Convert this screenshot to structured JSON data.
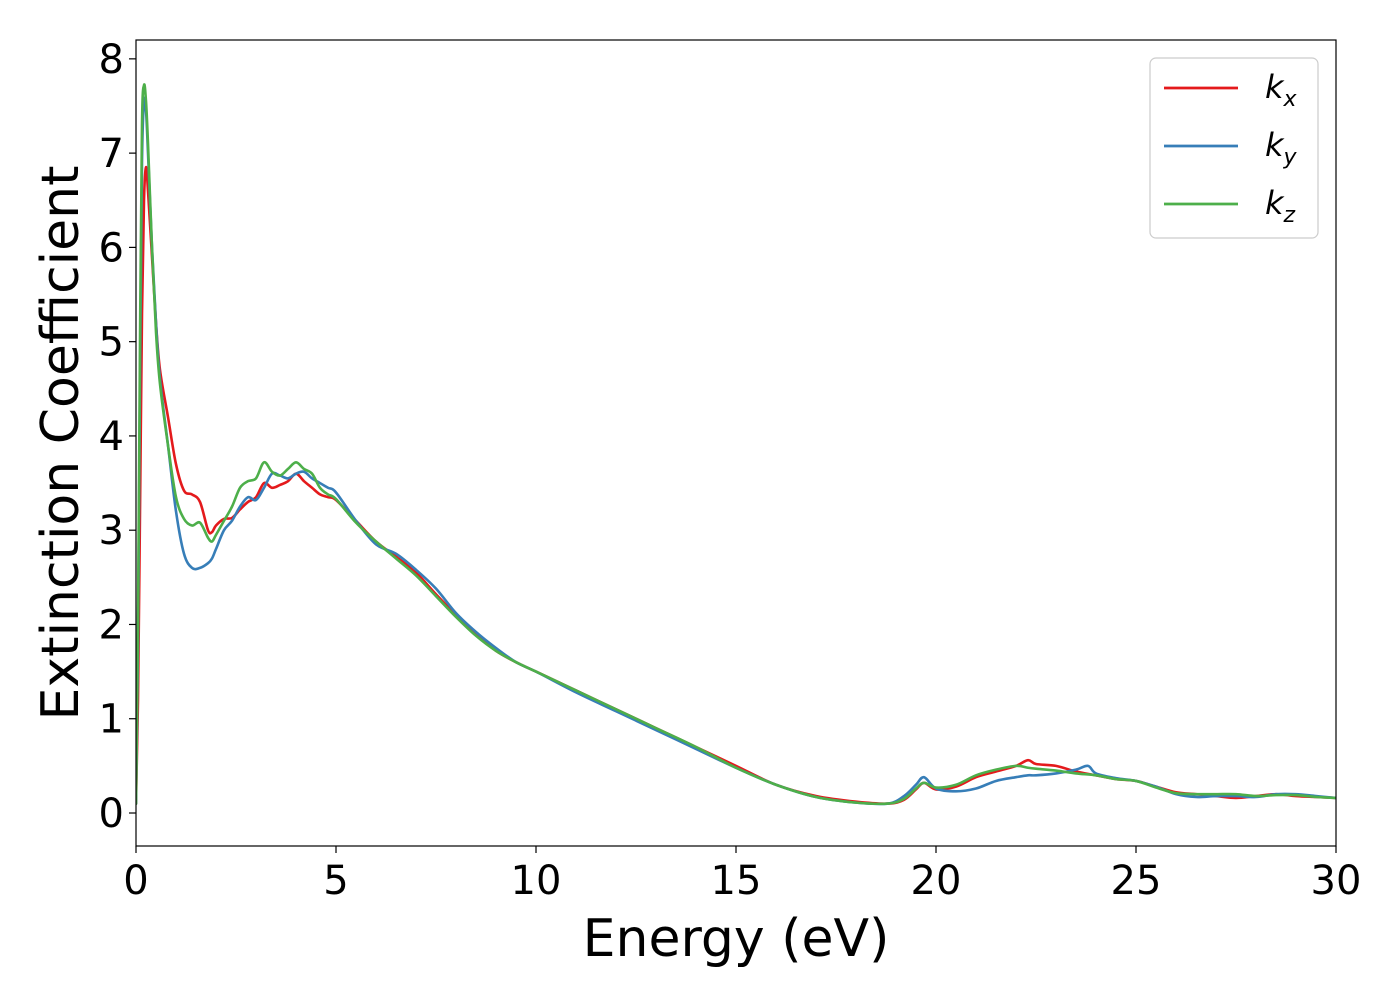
{
  "chart_data": {
    "type": "line",
    "xlabel": "Energy (eV)",
    "ylabel": "Extinction Coefficient",
    "xlim": [
      0,
      30
    ],
    "ylim": [
      -0.35,
      8.2
    ],
    "xticks": [
      0,
      5,
      10,
      15,
      20,
      25,
      30
    ],
    "xtick_labels": [
      "0",
      "5",
      "10",
      "15",
      "20",
      "25",
      "30"
    ],
    "yticks": [
      0,
      1,
      2,
      3,
      4,
      5,
      6,
      7,
      8
    ],
    "ytick_labels": [
      "0",
      "1",
      "2",
      "3",
      "4",
      "5",
      "6",
      "7",
      "8"
    ],
    "grid": false,
    "legend_position": "top-right",
    "series": [
      {
        "name": "k",
        "subscript": "x",
        "color": "#e41a1c",
        "x": [
          0,
          0.05,
          0.1,
          0.15,
          0.2,
          0.25,
          0.3,
          0.4,
          0.5,
          0.6,
          0.8,
          1.0,
          1.2,
          1.4,
          1.6,
          1.8,
          1.9,
          2.0,
          2.2,
          2.4,
          2.6,
          2.8,
          3.0,
          3.2,
          3.4,
          3.6,
          3.8,
          4.0,
          4.2,
          4.4,
          4.6,
          4.8,
          5.0,
          5.5,
          6.0,
          6.5,
          7.0,
          7.5,
          8.0,
          8.5,
          9.0,
          9.5,
          10,
          11,
          12,
          13,
          14,
          15,
          16,
          17,
          18,
          18.8,
          19.2,
          19.5,
          19.7,
          20.0,
          20.5,
          21.0,
          21.5,
          22.0,
          22.3,
          22.5,
          23.0,
          23.5,
          24.0,
          24.5,
          25.0,
          25.5,
          26.0,
          26.5,
          27.0,
          27.5,
          28.0,
          28.5,
          29.0,
          29.5,
          30.0
        ],
        "y": [
          0.1,
          1.2,
          3.2,
          5.3,
          6.5,
          6.85,
          6.6,
          5.9,
          5.2,
          4.7,
          4.2,
          3.7,
          3.42,
          3.38,
          3.3,
          3.0,
          2.98,
          3.05,
          3.12,
          3.13,
          3.22,
          3.3,
          3.35,
          3.5,
          3.45,
          3.48,
          3.52,
          3.6,
          3.52,
          3.45,
          3.38,
          3.35,
          3.32,
          3.1,
          2.88,
          2.72,
          2.55,
          2.32,
          2.1,
          1.9,
          1.72,
          1.6,
          1.5,
          1.3,
          1.1,
          0.9,
          0.7,
          0.5,
          0.3,
          0.18,
          0.12,
          0.1,
          0.14,
          0.25,
          0.32,
          0.25,
          0.28,
          0.38,
          0.44,
          0.5,
          0.56,
          0.52,
          0.5,
          0.44,
          0.4,
          0.36,
          0.34,
          0.28,
          0.22,
          0.2,
          0.18,
          0.16,
          0.18,
          0.2,
          0.18,
          0.17,
          0.16
        ]
      },
      {
        "name": "k",
        "subscript": "y",
        "color": "#377eb8",
        "x": [
          0,
          0.05,
          0.1,
          0.15,
          0.2,
          0.25,
          0.3,
          0.4,
          0.5,
          0.6,
          0.8,
          1.0,
          1.2,
          1.4,
          1.6,
          1.8,
          1.9,
          2.0,
          2.2,
          2.4,
          2.6,
          2.8,
          3.0,
          3.2,
          3.4,
          3.6,
          3.8,
          4.0,
          4.2,
          4.4,
          4.6,
          4.8,
          5.0,
          5.5,
          6.0,
          6.5,
          7.0,
          7.5,
          8.0,
          8.5,
          9.0,
          9.5,
          10,
          11,
          12,
          13,
          14,
          15,
          16,
          17,
          18,
          18.8,
          19.2,
          19.5,
          19.7,
          20.0,
          20.5,
          21.0,
          21.5,
          22.0,
          22.3,
          22.5,
          23.0,
          23.5,
          23.8,
          24.0,
          24.5,
          25.0,
          25.5,
          26.0,
          26.5,
          27.0,
          27.5,
          28.0,
          28.5,
          29.0,
          29.5,
          30.0
        ],
        "y": [
          0.1,
          1.8,
          4.6,
          6.9,
          7.55,
          7.45,
          7.0,
          6.0,
          5.2,
          4.6,
          3.9,
          3.2,
          2.75,
          2.6,
          2.6,
          2.65,
          2.7,
          2.8,
          3.0,
          3.1,
          3.25,
          3.35,
          3.32,
          3.45,
          3.6,
          3.58,
          3.55,
          3.6,
          3.62,
          3.55,
          3.5,
          3.45,
          3.4,
          3.1,
          2.85,
          2.75,
          2.58,
          2.38,
          2.12,
          1.92,
          1.75,
          1.6,
          1.5,
          1.28,
          1.08,
          0.88,
          0.68,
          0.48,
          0.3,
          0.17,
          0.11,
          0.1,
          0.18,
          0.3,
          0.38,
          0.26,
          0.23,
          0.26,
          0.34,
          0.38,
          0.4,
          0.4,
          0.42,
          0.46,
          0.5,
          0.42,
          0.37,
          0.34,
          0.28,
          0.2,
          0.17,
          0.18,
          0.18,
          0.17,
          0.2,
          0.2,
          0.18,
          0.16
        ]
      },
      {
        "name": "k",
        "subscript": "z",
        "color": "#4daf4a",
        "x": [
          0,
          0.05,
          0.1,
          0.15,
          0.2,
          0.25,
          0.3,
          0.4,
          0.5,
          0.6,
          0.8,
          1.0,
          1.2,
          1.4,
          1.6,
          1.8,
          1.9,
          2.0,
          2.2,
          2.4,
          2.6,
          2.8,
          3.0,
          3.2,
          3.4,
          3.6,
          3.8,
          4.0,
          4.2,
          4.4,
          4.6,
          4.8,
          5.0,
          5.5,
          6.0,
          6.5,
          7.0,
          7.5,
          8.0,
          8.5,
          9.0,
          9.5,
          10,
          11,
          12,
          13,
          14,
          15,
          16,
          17,
          18,
          18.8,
          19.2,
          19.5,
          19.7,
          20.0,
          20.5,
          21.0,
          21.5,
          22.0,
          22.3,
          22.5,
          23.0,
          23.5,
          24.0,
          24.5,
          25.0,
          25.5,
          26.0,
          26.5,
          27.0,
          27.5,
          28.0,
          28.5,
          29.0,
          29.5,
          30.0
        ],
        "y": [
          0.1,
          2.0,
          5.0,
          7.3,
          7.72,
          7.55,
          7.1,
          6.0,
          5.1,
          4.55,
          3.9,
          3.35,
          3.12,
          3.05,
          3.08,
          2.92,
          2.88,
          2.95,
          3.1,
          3.25,
          3.45,
          3.52,
          3.55,
          3.72,
          3.62,
          3.58,
          3.65,
          3.72,
          3.65,
          3.6,
          3.45,
          3.38,
          3.33,
          3.08,
          2.88,
          2.7,
          2.52,
          2.3,
          2.08,
          1.88,
          1.72,
          1.6,
          1.5,
          1.3,
          1.1,
          0.9,
          0.7,
          0.48,
          0.3,
          0.17,
          0.11,
          0.1,
          0.15,
          0.26,
          0.32,
          0.27,
          0.3,
          0.4,
          0.46,
          0.5,
          0.48,
          0.47,
          0.45,
          0.42,
          0.4,
          0.36,
          0.34,
          0.27,
          0.21,
          0.2,
          0.2,
          0.2,
          0.18,
          0.19,
          0.19,
          0.17,
          0.16
        ]
      }
    ]
  }
}
